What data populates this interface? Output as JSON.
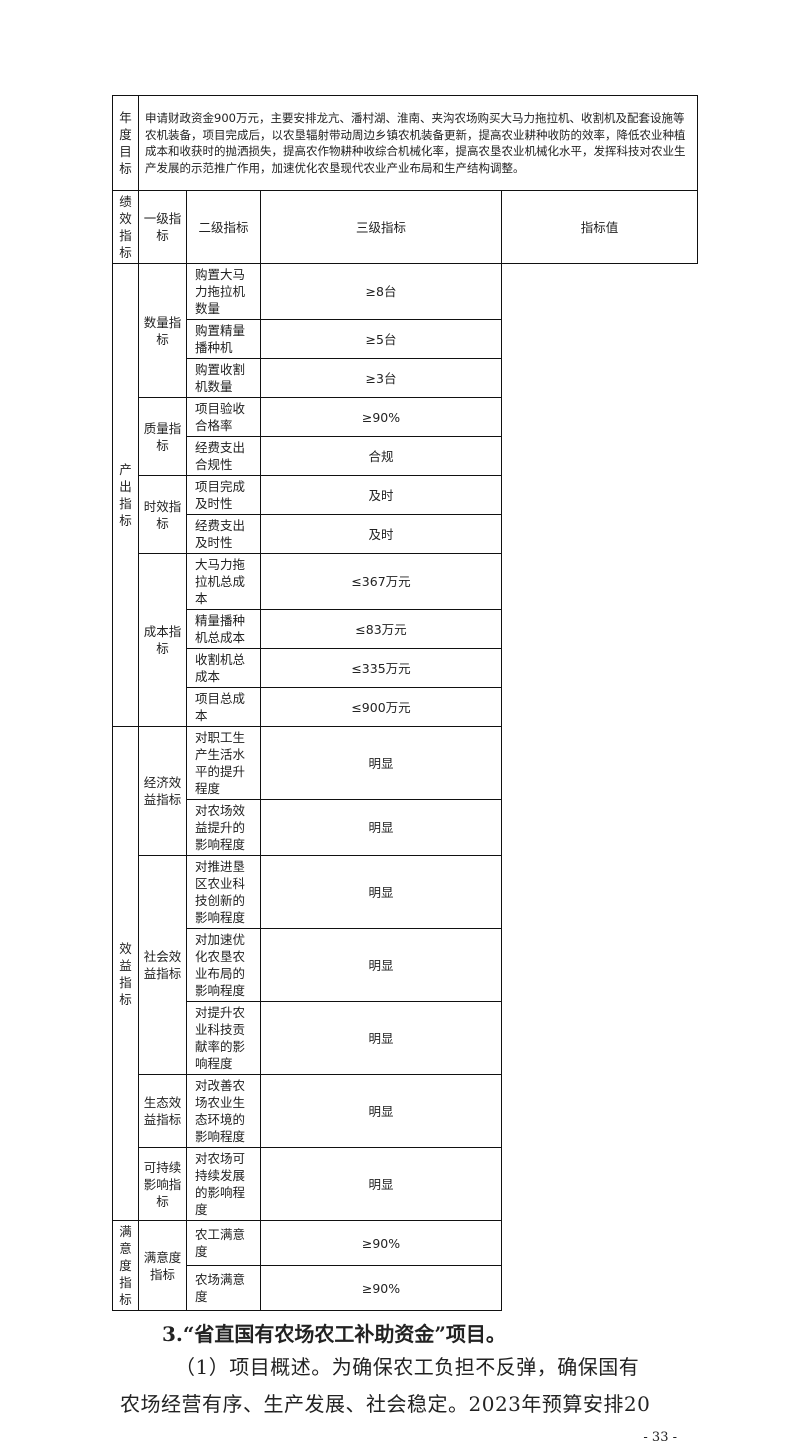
{
  "table": {
    "goal_label": "年度目标",
    "goal_text": "申请财政资金900万元，主要安排龙亢、潘村湖、淮南、夹沟农场购买大马力拖拉机、收割机及配套设施等农机装备，项目完成后，以农垦辐射带动周边乡镇农机装备更新，提高农业耕种收防的效率，降低农业种植成本和收获时的抛洒损失，提高农作物耕种收综合机械化率，提高农垦农业机械化水平，发挥科技对农业生产发展的示范推广作用，加速优化农垦现代农业产业布局和生产结构调整。",
    "perf_label": "绩效指标",
    "headers": [
      "一级指标",
      "二级指标",
      "三级指标",
      "指标值"
    ],
    "level1": [
      "产出指标",
      "效益指标",
      "满意度指标"
    ],
    "level2": [
      "数量指标",
      "质量指标",
      "时效指标",
      "成本指标",
      "经济效益指标",
      "社会效益指标",
      "生态效益指标",
      "可持续影响指标",
      "满意度指标"
    ],
    "rows": [
      {
        "name": "购置大马力拖拉机数量",
        "value": "≥8台"
      },
      {
        "name": "购置精量播种机",
        "value": "≥5台"
      },
      {
        "name": "购置收割机数量",
        "value": "≥3台"
      },
      {
        "name": "项目验收合格率",
        "value": "≥90%"
      },
      {
        "name": "经费支出合规性",
        "value": "合规"
      },
      {
        "name": "项目完成及时性",
        "value": "及时"
      },
      {
        "name": "经费支出及时性",
        "value": "及时"
      },
      {
        "name": "大马力拖拉机总成本",
        "value": "≤367万元"
      },
      {
        "name": "精量播种机总成本",
        "value": "≤83万元"
      },
      {
        "name": "收割机总成本",
        "value": "≤335万元"
      },
      {
        "name": "项目总成本",
        "value": "≤900万元"
      },
      {
        "name": "对职工生产生活水平的提升程度",
        "value": "明显"
      },
      {
        "name": "对农场效益提升的影响程度",
        "value": "明显"
      },
      {
        "name": "对推进垦区农业科技创新的影响程度",
        "value": "明显"
      },
      {
        "name": "对加速优化农垦农业布局的影响程度",
        "value": "明显"
      },
      {
        "name": "对提升农业科技贡献率的影响程度",
        "value": "明显"
      },
      {
        "name": "对改善农场农业生态环境的影响程度",
        "value": "明显"
      },
      {
        "name": "对农场可持续发展的影响程度",
        "value": "明显"
      },
      {
        "name": "农工满意度",
        "value": "≥90%"
      },
      {
        "name": "农场满意度",
        "value": "≥90%"
      }
    ]
  },
  "heading": "3.“省直国有农场农工补助资金”项目。",
  "paragraph_lines": [
    "（1）项目概述。为确保农工负担不反弹，确保国有",
    "农场经营有序、生产发展、社会稳定。2023年预算安排20"
  ],
  "page_number": "- 33 -"
}
